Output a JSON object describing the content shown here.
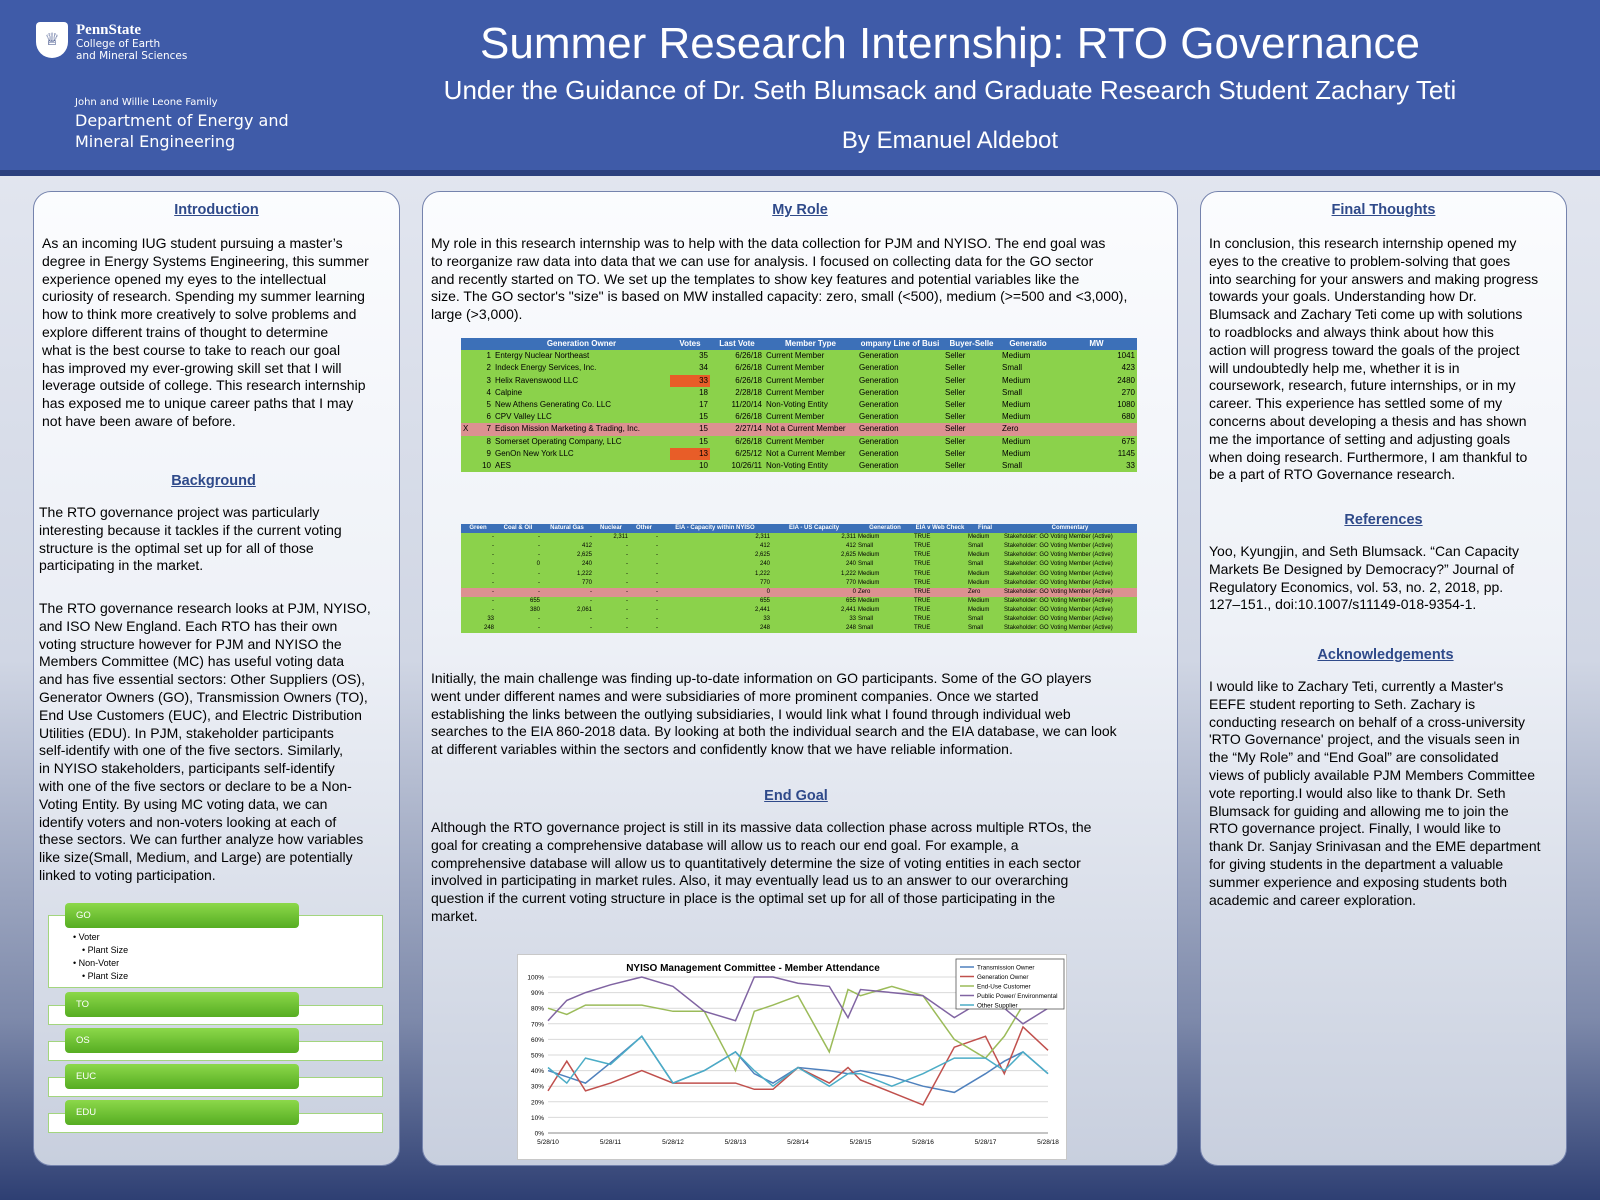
{
  "header": {
    "university": "PennState",
    "college": [
      "College of Earth",
      "and Mineral Sciences"
    ],
    "dept_family": "John and Willie Leone Family",
    "dept_name": [
      "Department of Energy and",
      "Mineral Engineering"
    ],
    "title": "Summer Research Internship: RTO Governance",
    "subtitle": "Under the Guidance of Dr. Seth Blumsack and Graduate Research Student Zachary Teti",
    "author": "By Emanuel Aldebot"
  },
  "left": {
    "intro_heading": "Introduction",
    "intro_lines": [
      "As an incoming IUG student pursuing a master’s",
      "degree in Energy Systems Engineering, this summer",
      "experience opened my eyes to the intellectual",
      "curiosity of research.  Spending my summer learning",
      "how to think more creatively to solve problems and",
      "explore different trains of thought to determine",
      "what is the best course to take to reach our goal",
      "has improved my ever-growing skill set that I will",
      "leverage outside of college. This research internship",
      "has exposed me to unique career paths that I may",
      "not have been aware of before."
    ],
    "background_heading": "Background",
    "bg_lines_1": [
      "The RTO governance project was particularly",
      "interesting because it tackles if the current voting",
      "structure is the optimal set up for all of those",
      "participating in the market."
    ],
    "bg_lines_2": [
      "The RTO governance research looks at PJM, NYISO,",
      "and ISO New England. Each RTO has their own",
      "voting structure however for PJM and NYISO the",
      "Members Committee (MC) has useful voting data",
      "and has five essential sectors: Other Suppliers (OS),",
      "Generator Owners (GO), Transmission Owners (TO),",
      "End Use Customers (EUC), and Electric Distribution",
      "Utilities (EDU). In PJM, stakeholder participants",
      "self-identify with one of the five sectors. Similarly,",
      "in NYISO stakeholders, participants self-identify",
      "with one of the five sectors or declare to be a Non-",
      "Voting Entity. By using MC voting data, we can",
      "identify voters and non-voters looking at each of",
      "these sectors. We can further analyze how variables",
      "like size(Small, Medium, and Large) are potentially",
      "linked to voting participation."
    ],
    "sectors": [
      "GO",
      "TO",
      "OS",
      "EUC",
      "EDU"
    ],
    "go_bullets": [
      "• Voter",
      "• Plant Size",
      "• Non-Voter",
      "• Plant Size"
    ]
  },
  "mid": {
    "role_heading": "My Role",
    "role_lines": [
      "My role in this research internship was to help with the data collection for PJM and NYISO. The end goal was",
      "to reorganize raw data into data that we can use for analysis. I focused on collecting data for the GO sector",
      "and recently started on TO. We set up the templates to show key features and potential variables like the",
      "size. The GO sector's \"size\" is based on MW installed capacity: zero, small (<500), medium (>=500 and <3,000),",
      "large (>3,000)."
    ],
    "table1": {
      "headers": [
        "",
        "",
        "Generation Owner",
        "Votes",
        "Last Vote",
        "Member Type",
        "ompany Line of Busi",
        "Buyer-Selle",
        "Generatio",
        "MW"
      ],
      "rows": [
        [
          "",
          "1",
          "Entergy Nuclear Northeast",
          "35",
          "6/26/18",
          "Current Member",
          "Generation",
          "Seller",
          "Medium",
          "1041"
        ],
        [
          "",
          "2",
          "Indeck Energy Services, Inc.",
          "34",
          "6/26/18",
          "Current Member",
          "Generation",
          "Seller",
          "Small",
          "423"
        ],
        [
          "",
          "3",
          "Helix Ravenswood LLC",
          "33",
          "6/26/18",
          "Current Member",
          "Generation",
          "Seller",
          "Medium",
          "2480"
        ],
        [
          "",
          "4",
          "Calpine",
          "18",
          "2/28/18",
          "Current Member",
          "Generation",
          "Seller",
          "Small",
          "270"
        ],
        [
          "",
          "5",
          "New Athens Generating Co. LLC",
          "17",
          "11/20/14",
          "Non-Voting Entity",
          "Generation",
          "Seller",
          "Medium",
          "1080"
        ],
        [
          "",
          "6",
          "CPV Valley LLC",
          "15",
          "6/26/18",
          "Current Member",
          "Generation",
          "Seller",
          "Medium",
          "680"
        ],
        [
          "X",
          "7",
          "Edison Mission Marketing & Trading, Inc.",
          "15",
          "2/27/14",
          "Not a Current Member",
          "Generation",
          "Seller",
          "Zero",
          ""
        ],
        [
          "",
          "8",
          "Somerset Operating Company, LLC",
          "15",
          "6/26/18",
          "Current Member",
          "Generation",
          "Seller",
          "Medium",
          "675"
        ],
        [
          "",
          "9",
          "GenOn New York LLC",
          "13",
          "6/25/12",
          "Not a Current Member",
          "Generation",
          "Seller",
          "Medium",
          "1145"
        ],
        [
          "",
          "10",
          "AES",
          "10",
          "10/26/11",
          "Non-Voting Entity",
          "Generation",
          "Seller",
          "Small",
          "33"
        ]
      ]
    },
    "table2": {
      "headers": [
        "Green",
        "Coal & Oil",
        "Natural Gas",
        "Nuclear",
        "Other",
        "EIA - Capacity within NYISO",
        "EIA - US Capacity",
        "Generation",
        "EIA v Web Check",
        "Final",
        "Commentary"
      ],
      "rows": [
        [
          "-",
          "-",
          "-",
          "2,311",
          "-",
          "2,311",
          "2,311",
          "Medium",
          "TRUE",
          "Medium",
          "Stakeholder: GO Voting Member (Active)"
        ],
        [
          "-",
          "-",
          "412",
          "-",
          "-",
          "412",
          "412",
          "Small",
          "TRUE",
          "Small",
          "Stakeholder: GO Voting Member (Active)"
        ],
        [
          "-",
          "-",
          "2,625",
          "-",
          "-",
          "2,625",
          "2,625",
          "Medium",
          "TRUE",
          "Medium",
          "Stakeholder: GO Voting Member (Active)"
        ],
        [
          "-",
          "0",
          "240",
          "-",
          "-",
          "240",
          "240",
          "Small",
          "TRUE",
          "Small",
          "Stakeholder: GO Voting Member (Active)"
        ],
        [
          "-",
          "-",
          "1,222",
          "-",
          "-",
          "1,222",
          "1,222",
          "Medium",
          "TRUE",
          "Medium",
          "Stakeholder: GO Voting Member (Active)"
        ],
        [
          "-",
          "-",
          "770",
          "-",
          "-",
          "770",
          "770",
          "Medium",
          "TRUE",
          "Medium",
          "Stakeholder: GO Voting Member (Active)"
        ],
        [
          "-",
          "-",
          "-",
          "-",
          "-",
          "0",
          "0",
          "Zero",
          "TRUE",
          "Zero",
          "Stakeholder: GO Voting Member (Active)"
        ],
        [
          "-",
          "655",
          "-",
          "-",
          "-",
          "655",
          "655",
          "Medium",
          "TRUE",
          "Medium",
          "Stakeholder: GO Voting Member (Active)"
        ],
        [
          "-",
          "380",
          "2,061",
          "-",
          "-",
          "2,441",
          "2,441",
          "Medium",
          "TRUE",
          "Medium",
          "Stakeholder: GO Voting Member (Active)"
        ],
        [
          "33",
          "-",
          "-",
          "-",
          "-",
          "33",
          "33",
          "Small",
          "TRUE",
          "Small",
          "Stakeholder: GO Voting Member (Active)"
        ],
        [
          "248",
          "-",
          "-",
          "-",
          "-",
          "248",
          "248",
          "Small",
          "TRUE",
          "Small",
          "Stakeholder: GO Voting Member (Active)"
        ]
      ]
    },
    "challenge_lines": [
      "Initially, the main challenge was finding up-to-date information on GO participants. Some of the GO players",
      "went under different names and were subsidiaries of more prominent companies. Once we started",
      "establishing the links between the outlying subsidiaries, I would link what I found through individual web",
      "searches to the EIA 860-2018 data. By looking at both the individual search and the EIA database, we can look",
      "at different variables within the sectors and confidently know that we have reliable information."
    ],
    "endgoal_heading": "End Goal",
    "endgoal_lines": [
      "Although the RTO governance project is still in its massive data collection phase across multiple RTOs, the",
      "goal for creating a comprehensive database will allow us to reach our end goal. For example, a",
      "comprehensive database will allow us to quantitatively determine the size of voting entities in each sector",
      "involved in participating in market rules. Also, it may eventually lead us to an answer to our overarching",
      "question if the current voting structure in place is the optimal set up for all of those participating in the",
      "market."
    ]
  },
  "right": {
    "final_heading": "Final Thoughts",
    "final_lines": [
      "In conclusion, this research internship opened my",
      "eyes to the creative to problem-solving that goes",
      "into searching for your answers and making progress",
      "towards your goals. Understanding how Dr.",
      "Blumsack and Zachary Teti come up with solutions",
      "to roadblocks and always think about how this",
      "action will progress toward the goals of the project",
      "will undoubtedly help me, whether it is in",
      "coursework, research, future internships, or in my",
      "career. This experience has settled some of my",
      "concerns about developing a thesis and has shown",
      "me the importance of setting and adjusting goals",
      "when doing research. Furthermore, I am thankful to",
      "be a part of RTO Governance research."
    ],
    "ref_heading": "References",
    "ref_lines": [
      "Yoo, Kyungjin, and Seth Blumsack. “Can Capacity",
      "Markets Be Designed by Democracy?” Journal of",
      "Regulatory Economics, vol. 53, no. 2, 2018, pp.",
      "127–151., doi:10.1007/s11149-018-9354-1."
    ],
    "ack_heading": "Acknowledgements",
    "ack_lines": [
      "I would like to Zachary Teti, currently a Master's",
      "EEFE student reporting to Seth. Zachary is",
      "conducting research on behalf of a cross-university",
      "'RTO Governance' project, and the visuals seen in",
      "the “My Role” and “End Goal” are consolidated",
      "views of publicly available PJM Members Committee",
      "vote reporting.I would also like to thank Dr. Seth",
      "Blumsack for guiding and allowing me to join the",
      "RTO governance project. Finally, I would like to",
      "thank Dr. Sanjay Srinivasan and the EME department",
      "for giving students in the department a valuable",
      "summer experience and exposing students both",
      "academic and career exploration."
    ]
  },
  "colors": {
    "header": "#3f5ba8",
    "heading": "#2f4a8a",
    "sheet_green": "#8bd24b",
    "sheet_red": "#dc9191",
    "sheet_orange": "#e85d28"
  },
  "chart_data": {
    "type": "line",
    "title": "NYISO Management Committee - Member Attendance",
    "x_ticks": [
      "5/28/10",
      "5/28/11",
      "5/28/12",
      "5/28/13",
      "5/28/14",
      "5/28/15",
      "5/28/16",
      "5/28/17",
      "5/28/18"
    ],
    "ylim": [
      0,
      100
    ],
    "y_ticks": [
      "0%",
      "10%",
      "20%",
      "30%",
      "40%",
      "50%",
      "60%",
      "70%",
      "80%",
      "90%",
      "100%"
    ],
    "grid": true,
    "legend": "top-right",
    "x_positions": [
      0,
      0.3,
      0.6,
      1,
      1.5,
      2,
      2.5,
      3,
      3.3,
      3.6,
      4,
      4.5,
      4.8,
      5,
      5.5,
      6,
      6.5,
      7,
      7.3,
      7.6,
      8
    ],
    "series": [
      {
        "name": "Transmission Owner",
        "color": "#4f81bd",
        "values": [
          40,
          36,
          32,
          45,
          62,
          32,
          40,
          52,
          38,
          32,
          42,
          40,
          38,
          40,
          36,
          30,
          26,
          38,
          46,
          52,
          38
        ]
      },
      {
        "name": "Generation Owner",
        "color": "#c0504d",
        "values": [
          27,
          46,
          27,
          32,
          40,
          32,
          32,
          32,
          28,
          28,
          42,
          32,
          42,
          34,
          26,
          18,
          55,
          62,
          38,
          68,
          53
        ]
      },
      {
        "name": "End-Use Customer",
        "color": "#9bbb59",
        "values": [
          80,
          76,
          82,
          82,
          82,
          78,
          78,
          40,
          78,
          82,
          88,
          52,
          92,
          88,
          94,
          88,
          60,
          48,
          62,
          82,
          80
        ]
      },
      {
        "name": "Public Power/ Environmental",
        "color": "#8064a2",
        "values": [
          72,
          85,
          90,
          95,
          100,
          94,
          78,
          72,
          100,
          100,
          96,
          94,
          74,
          92,
          90,
          88,
          74,
          86,
          80,
          70,
          80
        ]
      },
      {
        "name": "Other Supplier",
        "color": "#4bacc6",
        "values": [
          42,
          32,
          48,
          44,
          62,
          32,
          40,
          52,
          40,
          30,
          42,
          30,
          38,
          38,
          30,
          38,
          48,
          48,
          40,
          52,
          38
        ]
      }
    ]
  }
}
